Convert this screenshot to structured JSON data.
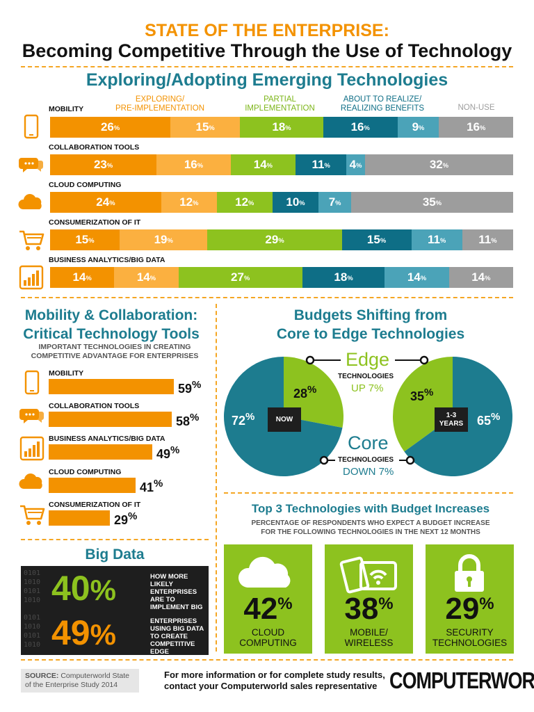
{
  "header": {
    "kicker": "STATE OF THE ENTERPRISE:",
    "title": "Becoming Competitive Through the Use of Technology"
  },
  "colors": {
    "orange": "#f39200",
    "light_orange": "#fbb040",
    "green": "#8dc21f",
    "teal_dark": "#0e6e86",
    "teal_light": "#4ba3b8",
    "gray": "#9d9d9d",
    "heading_teal": "#1d7c8f"
  },
  "adoption": {
    "title": "Exploring/Adopting Emerging Technologies",
    "stages": [
      {
        "label": "EXPLORING/\nPRE-IMPLEMENTATION",
        "color": "#f39200"
      },
      {
        "label": "PARTIAL\nIMPLEMENTATION",
        "color": "#7cb518"
      },
      {
        "label": "ABOUT TO REALIZE/\nREALIZING BENEFITS",
        "color": "#0e6e86"
      },
      {
        "label": "NON-USE",
        "color": "#9d9d9d"
      }
    ]
  },
  "important": {
    "title_line1": "Mobility & Collaboration:",
    "title_line2": "Critical Technology Tools",
    "caption_line1": "IMPORTANT TECHNOLOGIES IN CREATING",
    "caption_line2": "COMPETITIVE ADVANTAGE FOR ENTERPRISES"
  },
  "big_data": {
    "title": "Big Data",
    "binary": "0101\n1010\n0101\n1010",
    "items": [
      {
        "value": "40%",
        "color": "#8dc21f",
        "text": "HOW MORE LIKELY ENTERPRISES ARE TO IMPLEMENT BIG DATA VERSUS SMBs"
      },
      {
        "value": "49%",
        "color": "#f39200",
        "text": "ENTERPRISES USING BIG DATA TO CREATE COMPETITIVE EDGE"
      }
    ]
  },
  "budgets": {
    "title_line1": "Budgets Shifting from",
    "title_line2": "Core to Edge Technologies",
    "edge_word": "Edge",
    "edge_tech": "TECHNOLOGIES",
    "edge_change": "UP 7%",
    "core_word": "Core",
    "core_tech": "TECHNOLOGIES",
    "core_change": "DOWN 7%",
    "now_label": "NOW",
    "future_label": "1-3\nYEARS"
  },
  "top3": {
    "title": "Top 3 Technologies with Budget Increases",
    "caption_line1": "PERCENTAGE OF RESPONDENTS WHO EXPECT A BUDGET INCREASE",
    "caption_line2": "FOR THE FOLLOWING TECHNOLOGIES IN THE NEXT 12 MONTHS",
    "items": [
      {
        "value": "42%",
        "label": "CLOUD\nCOMPUTING",
        "icon": "cloud-icon"
      },
      {
        "value": "38%",
        "label": "MOBILE/\nWIRELESS",
        "icon": "mobile-wireless-icon"
      },
      {
        "value": "29%",
        "label": "SECURITY\nTECHNOLOGIES",
        "icon": "padlock-icon"
      }
    ]
  },
  "footer": {
    "source_label": "SOURCE:",
    "source_text": "Computerworld State of the Enterprise Study 2014",
    "info_line1": "For more information or for complete study results,",
    "info_line2": "contact your Computerworld sales representative",
    "logo": "COMPUTERWORLD"
  },
  "chart_data": [
    {
      "type": "bar",
      "stacked": true,
      "orientation": "horizontal",
      "categories": [
        "MOBILITY",
        "COLLABORATION TOOLS",
        "CLOUD COMPUTING",
        "CONSUMERIZATION OF IT",
        "BUSINESS ANALYTICS/BIG DATA"
      ],
      "series": [
        {
          "values": [
            26,
            23,
            24,
            15,
            14
          ],
          "color": "#f39200"
        },
        {
          "values": [
            15,
            16,
            12,
            19,
            14
          ],
          "color": "#fbb040"
        },
        {
          "values": [
            18,
            14,
            12,
            29,
            27
          ],
          "color": "#8dc21f"
        },
        {
          "values": [
            16,
            11,
            10,
            15,
            18
          ],
          "color": "#0e6e86"
        },
        {
          "values": [
            9,
            4,
            7,
            11,
            14
          ],
          "color": "#4ba3b8"
        },
        {
          "values": [
            16,
            32,
            35,
            11,
            14
          ],
          "color": "#9d9d9d"
        }
      ],
      "unit": "%"
    },
    {
      "type": "bar",
      "orientation": "horizontal",
      "categories": [
        "MOBILITY",
        "COLLABORATION TOOLS",
        "BUSINESS ANALYTICS/BIG DATA",
        "CLOUD COMPUTING",
        "CONSUMERIZATION OF IT"
      ],
      "icons": [
        "phone-icon",
        "chat-icon",
        "analytics-icon",
        "cloud-icon",
        "cart-icon"
      ],
      "values": [
        59,
        58,
        49,
        41,
        29
      ],
      "unit": "%",
      "color": "#f39200"
    },
    {
      "type": "pie",
      "label": "NOW",
      "labels": [
        "Edge",
        "Core"
      ],
      "values": [
        28,
        72
      ],
      "colors": [
        "#8dc21f",
        "#1d7c8f"
      ]
    },
    {
      "type": "pie",
      "label": "1-3 YEARS",
      "labels": [
        "Edge",
        "Core"
      ],
      "values": [
        35,
        65
      ],
      "colors": [
        "#8dc21f",
        "#1d7c8f"
      ]
    }
  ]
}
